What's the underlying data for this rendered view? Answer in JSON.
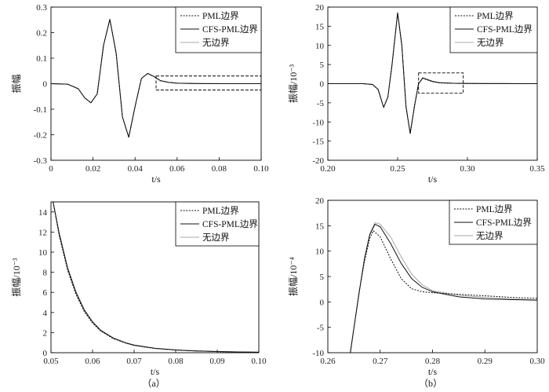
{
  "panel_labels": [
    "（a）",
    "（b）"
  ],
  "legend": {
    "entries": [
      {
        "label": "PML边界",
        "style": "dotted",
        "color": "#111111"
      },
      {
        "label": "CFS-PML边界",
        "style": "solid",
        "color": "#111111"
      },
      {
        "label": "无边界",
        "style": "solid",
        "color": "#a8a8a8"
      }
    ]
  },
  "chart_data": [
    {
      "id": "top-left",
      "type": "line",
      "xlabel": "t/s",
      "ylabel": "振幅",
      "xlim": [
        0,
        0.1
      ],
      "ylim": [
        -0.3,
        0.3
      ],
      "xticks": [
        "0",
        "0.02",
        "0.04",
        "0.06",
        "0.08",
        "0.10"
      ],
      "xtick_values": [
        0,
        0.02,
        0.04,
        0.06,
        0.08,
        0.1
      ],
      "yticks": [
        "-0.3",
        "-0.2",
        "-0.1",
        "0",
        "0.1",
        "0.2",
        "0.3"
      ],
      "ytick_values": [
        -0.3,
        -0.2,
        -0.1,
        0,
        0.1,
        0.2,
        0.3
      ],
      "legend_position": "top-right",
      "zoom_box": {
        "x": [
          0.05,
          0.1
        ],
        "y": [
          -0.025,
          0.03
        ]
      },
      "series": [
        {
          "name": "PML边界",
          "x": [
            0,
            0.008,
            0.013,
            0.016,
            0.019,
            0.022,
            0.025,
            0.028,
            0.031,
            0.034,
            0.037,
            0.04,
            0.043,
            0.046,
            0.049,
            0.052,
            0.056,
            0.06,
            0.065,
            0.07,
            0.08,
            0.09,
            0.1
          ],
          "y": [
            0,
            -0.002,
            -0.02,
            -0.055,
            -0.075,
            -0.04,
            0.15,
            0.252,
            0.12,
            -0.13,
            -0.21,
            -0.09,
            0.02,
            0.04,
            0.028,
            0.012,
            0.005,
            0.002,
            0.001,
            0.0005,
            0.0002,
            0.0001,
            0.0001
          ]
        },
        {
          "name": "CFS-PML边界",
          "x": [
            0,
            0.008,
            0.013,
            0.016,
            0.019,
            0.022,
            0.025,
            0.028,
            0.031,
            0.034,
            0.037,
            0.04,
            0.043,
            0.046,
            0.049,
            0.052,
            0.056,
            0.06,
            0.065,
            0.07,
            0.08,
            0.09,
            0.1
          ],
          "y": [
            0,
            -0.002,
            -0.02,
            -0.055,
            -0.075,
            -0.04,
            0.15,
            0.252,
            0.12,
            -0.13,
            -0.21,
            -0.09,
            0.02,
            0.04,
            0.028,
            0.012,
            0.005,
            0.002,
            0.001,
            0.0005,
            0.0002,
            0.0001,
            0.0001
          ]
        },
        {
          "name": "无边界",
          "x": [
            0,
            0.008,
            0.013,
            0.016,
            0.019,
            0.022,
            0.025,
            0.028,
            0.031,
            0.034,
            0.037,
            0.04,
            0.043,
            0.046,
            0.049,
            0.052,
            0.056,
            0.06,
            0.065,
            0.07,
            0.08,
            0.09,
            0.1
          ],
          "y": [
            0,
            -0.002,
            -0.02,
            -0.055,
            -0.075,
            -0.04,
            0.15,
            0.252,
            0.12,
            -0.13,
            -0.21,
            -0.09,
            0.02,
            0.04,
            0.028,
            0.012,
            0.005,
            0.002,
            0.001,
            0.0005,
            0.0002,
            0.0001,
            0.0001
          ]
        }
      ]
    },
    {
      "id": "top-right",
      "type": "line",
      "xlabel": "t/s",
      "ylabel": "振幅/10⁻³",
      "xlim": [
        0.2,
        0.35
      ],
      "ylim": [
        -20,
        20
      ],
      "xticks": [
        "0.20",
        "0.25",
        "0.30",
        "0.35"
      ],
      "xtick_values": [
        0.2,
        0.25,
        0.3,
        0.35
      ],
      "yticks": [
        "-20",
        "-15",
        "-10",
        "-5",
        "0",
        "5",
        "10",
        "15",
        "20"
      ],
      "ytick_values": [
        -20,
        -15,
        -10,
        -5,
        0,
        5,
        10,
        15,
        20
      ],
      "legend_position": "top-right",
      "zoom_box": {
        "x": [
          0.265,
          0.297
        ],
        "y": [
          -2.5,
          2.8
        ]
      },
      "series": [
        {
          "name": "PML边界",
          "x": [
            0.2,
            0.225,
            0.232,
            0.236,
            0.24,
            0.243,
            0.246,
            0.25,
            0.253,
            0.256,
            0.259,
            0.262,
            0.265,
            0.268,
            0.271,
            0.275,
            0.28,
            0.29,
            0.3,
            0.32,
            0.35
          ],
          "y": [
            0,
            0,
            -0.2,
            -1.5,
            -6.2,
            -3.5,
            5,
            18.5,
            10,
            -6,
            -13,
            -6,
            0,
            1.4,
            1.0,
            0.5,
            0.2,
            0.1,
            0.05,
            0.02,
            0
          ]
        },
        {
          "name": "CFS-PML边界",
          "x": [
            0.2,
            0.225,
            0.232,
            0.236,
            0.24,
            0.243,
            0.246,
            0.25,
            0.253,
            0.256,
            0.259,
            0.262,
            0.265,
            0.268,
            0.271,
            0.275,
            0.28,
            0.29,
            0.3,
            0.32,
            0.35
          ],
          "y": [
            0,
            0,
            -0.2,
            -1.5,
            -6.2,
            -3.5,
            5,
            18.5,
            10,
            -6,
            -13,
            -6,
            0,
            1.5,
            1.1,
            0.6,
            0.25,
            0.1,
            0.05,
            0.02,
            0
          ]
        },
        {
          "name": "无边界",
          "x": [
            0.2,
            0.225,
            0.232,
            0.236,
            0.24,
            0.243,
            0.246,
            0.25,
            0.253,
            0.256,
            0.259,
            0.262,
            0.265,
            0.268,
            0.271,
            0.275,
            0.28,
            0.29,
            0.3,
            0.32,
            0.35
          ],
          "y": [
            0,
            0,
            -0.2,
            -1.5,
            -6.2,
            -3.5,
            5,
            18.5,
            10,
            -6,
            -13,
            -6,
            0,
            1.55,
            1.15,
            0.6,
            0.25,
            0.1,
            0.05,
            0.02,
            0
          ]
        }
      ]
    },
    {
      "id": "bottom-left",
      "type": "line",
      "xlabel": "t/s",
      "ylabel": "振幅/10⁻³",
      "xlim": [
        0.05,
        0.1
      ],
      "ylim": [
        0,
        15
      ],
      "xticks": [
        "0.05",
        "0.06",
        "0.07",
        "0.08",
        "0.09",
        "0.10"
      ],
      "xtick_values": [
        0.05,
        0.06,
        0.07,
        0.08,
        0.09,
        0.1
      ],
      "yticks": [
        "0",
        "2",
        "4",
        "6",
        "8",
        "10",
        "12",
        "14"
      ],
      "ytick_values": [
        0,
        2,
        4,
        6,
        8,
        10,
        12,
        14
      ],
      "legend_position": "top-right",
      "series": [
        {
          "name": "PML边界",
          "x": [
            0.0505,
            0.052,
            0.054,
            0.056,
            0.058,
            0.06,
            0.062,
            0.065,
            0.068,
            0.07,
            0.075,
            0.08,
            0.085,
            0.09,
            0.095,
            0.1
          ],
          "y": [
            15,
            11.6,
            8.2,
            5.8,
            4.1,
            2.95,
            2.15,
            1.4,
            0.95,
            0.72,
            0.42,
            0.26,
            0.17,
            0.11,
            0.07,
            0.05
          ]
        },
        {
          "name": "CFS-PML边界",
          "x": [
            0.0505,
            0.052,
            0.054,
            0.056,
            0.058,
            0.06,
            0.062,
            0.065,
            0.068,
            0.07,
            0.075,
            0.08,
            0.085,
            0.09,
            0.095,
            0.1
          ],
          "y": [
            15,
            11.8,
            8.4,
            6.0,
            4.25,
            3.05,
            2.2,
            1.45,
            0.98,
            0.75,
            0.44,
            0.27,
            0.18,
            0.12,
            0.08,
            0.05
          ]
        },
        {
          "name": "无边界",
          "x": [
            0.0505,
            0.052,
            0.054,
            0.056,
            0.058,
            0.06,
            0.062,
            0.065,
            0.068,
            0.07,
            0.075,
            0.08,
            0.085,
            0.09,
            0.095,
            0.1
          ],
          "y": [
            15,
            11.9,
            8.5,
            6.1,
            4.3,
            3.1,
            2.25,
            1.48,
            1.0,
            0.77,
            0.45,
            0.28,
            0.18,
            0.12,
            0.08,
            0.05
          ]
        }
      ]
    },
    {
      "id": "bottom-right",
      "type": "line",
      "xlabel": "t/s",
      "ylabel": "振幅/10⁻⁴",
      "xlim": [
        0.26,
        0.3
      ],
      "ylim": [
        -10,
        20
      ],
      "xticks": [
        "0.26",
        "0.27",
        "0.28",
        "0.29",
        "0.30"
      ],
      "xtick_values": [
        0.26,
        0.27,
        0.28,
        0.29,
        0.3
      ],
      "yticks": [
        "-10",
        "-5",
        "0",
        "5",
        "10",
        "15",
        "20"
      ],
      "ytick_values": [
        -10,
        -5,
        0,
        5,
        10,
        15,
        20
      ],
      "legend_position": "top-right",
      "series": [
        {
          "name": "PML边界",
          "x": [
            0.2643,
            0.265,
            0.266,
            0.267,
            0.268,
            0.2687,
            0.27,
            0.272,
            0.274,
            0.276,
            0.278,
            0.28,
            0.285,
            0.29,
            0.295,
            0.3
          ],
          "y": [
            -10,
            -5,
            2,
            8,
            12.5,
            14.0,
            12.8,
            8.5,
            4.6,
            2.6,
            2.0,
            1.8,
            1.5,
            1.2,
            0.9,
            0.7
          ]
        },
        {
          "name": "CFS-PML边界",
          "x": [
            0.2643,
            0.265,
            0.266,
            0.267,
            0.268,
            0.269,
            0.27,
            0.272,
            0.274,
            0.276,
            0.278,
            0.28,
            0.285,
            0.29,
            0.295,
            0.3
          ],
          "y": [
            -10,
            -5,
            2,
            8.5,
            13.2,
            15.3,
            14.8,
            11.5,
            7.6,
            4.6,
            2.9,
            2.0,
            1.0,
            0.6,
            0.45,
            0.35
          ]
        },
        {
          "name": "无边界",
          "x": [
            0.2643,
            0.265,
            0.266,
            0.267,
            0.268,
            0.269,
            0.27,
            0.272,
            0.274,
            0.276,
            0.278,
            0.28,
            0.285,
            0.29,
            0.295,
            0.3
          ],
          "y": [
            -10,
            -5,
            2,
            8.5,
            13.4,
            15.6,
            15.3,
            12.8,
            8.9,
            5.5,
            3.4,
            2.2,
            1.3,
            0.9,
            0.6,
            0.4
          ]
        }
      ]
    }
  ]
}
